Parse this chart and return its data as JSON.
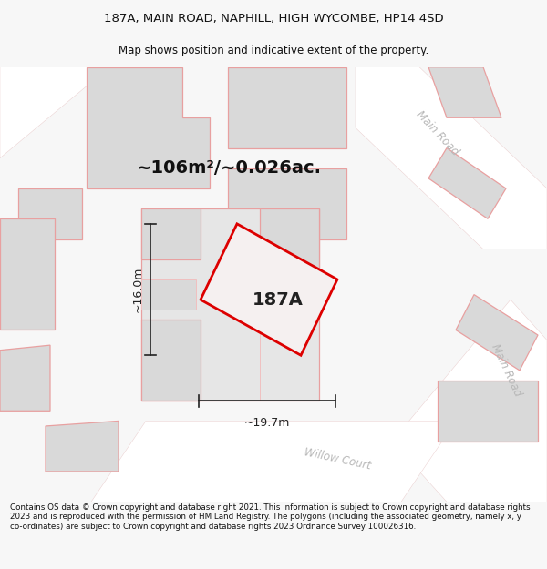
{
  "title_line1": "187A, MAIN ROAD, NAPHILL, HIGH WYCOMBE, HP14 4SD",
  "title_line2": "Map shows position and indicative extent of the property.",
  "footer": "Contains OS data © Crown copyright and database right 2021. This information is subject to Crown copyright and database rights 2023 and is reproduced with the permission of HM Land Registry. The polygons (including the associated geometry, namely x, y co-ordinates) are subject to Crown copyright and database rights 2023 Ordnance Survey 100026316.",
  "area_text": "~106m²/~0.026ac.",
  "property_label": "187A",
  "dim_width": "~19.7m",
  "dim_height": "~16.0m",
  "bg_color": "#f7f7f7",
  "map_bg": "#f7f7f7",
  "building_fill": "#d9d9d9",
  "building_edge": "#e8a0a0",
  "road_fill": "#ffffff",
  "prop_fill": "#eeeeee",
  "prop_edge": "#dd0000",
  "road_label_color": "#b8b8b8",
  "dim_color": "#222222",
  "title_fontsize": 9.5,
  "subtitle_fontsize": 8.5,
  "footer_fontsize": 6.3,
  "area_fontsize": 14,
  "label_fontsize": 14,
  "road_label_fontsize": 8.5,
  "dim_fontsize": 9
}
